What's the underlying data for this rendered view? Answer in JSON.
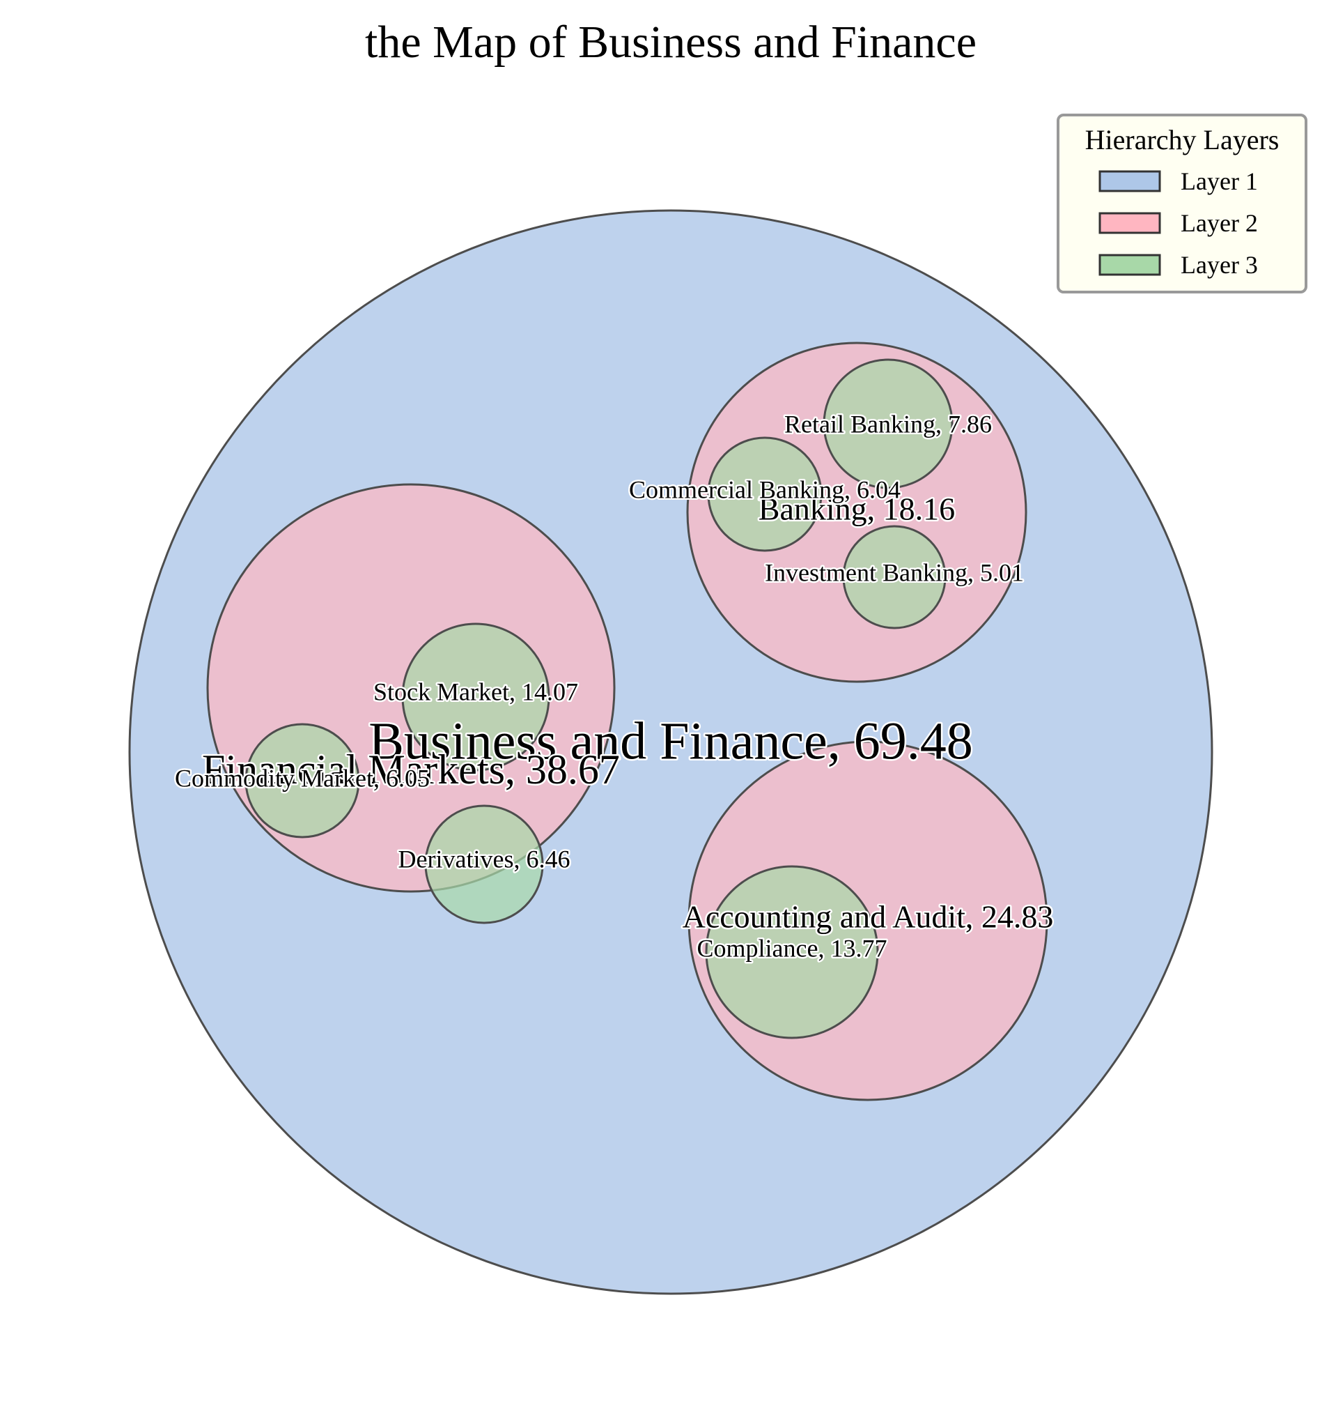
{
  "chart_data": {
    "type": "circle_packing",
    "title": "the Map of Business and Finance",
    "legend": {
      "title": "Hierarchy Layers",
      "placement": "top-right",
      "entries": [
        {
          "label": "Layer 1",
          "color": "#aec7e8"
        },
        {
          "label": "Layer 2",
          "color": "#ffb6c1"
        },
        {
          "label": "Layer 3",
          "color": "#a8d8a8"
        }
      ]
    },
    "nodes": [
      {
        "id": "root",
        "label": "Business and Finance, 69.48",
        "name": "Business and Finance",
        "value": 69.48,
        "layer": 1,
        "parent": null
      },
      {
        "id": "fm",
        "label": "Financial Markets, 38.67",
        "name": "Financial Markets",
        "value": 38.67,
        "layer": 2,
        "parent": "root"
      },
      {
        "id": "banking",
        "label": "Banking, 18.16",
        "name": "Banking",
        "value": 18.16,
        "layer": 2,
        "parent": "root"
      },
      {
        "id": "aa",
        "label": "Accounting and Audit, 24.83",
        "name": "Accounting and Audit",
        "value": 24.83,
        "layer": 2,
        "parent": "root"
      },
      {
        "id": "stock",
        "label": "Stock Market, 14.07",
        "name": "Stock Market",
        "value": 14.07,
        "layer": 3,
        "parent": "fm"
      },
      {
        "id": "commodity",
        "label": "Commodity Market, 6.05",
        "name": "Commodity Market",
        "value": 6.05,
        "layer": 3,
        "parent": "fm"
      },
      {
        "id": "deriv",
        "label": "Derivatives, 6.46",
        "name": "Derivatives",
        "value": 6.46,
        "layer": 3,
        "parent": "fm"
      },
      {
        "id": "retail",
        "label": "Retail Banking, 7.86",
        "name": "Retail Banking",
        "value": 7.86,
        "layer": 3,
        "parent": "banking"
      },
      {
        "id": "commercial",
        "label": "Commercial Banking, 6.04",
        "name": "Commercial Banking",
        "value": 6.04,
        "layer": 3,
        "parent": "banking"
      },
      {
        "id": "invest",
        "label": "Investment Banking, 5.01",
        "name": "Investment Banking",
        "value": 5.01,
        "layer": 3,
        "parent": "banking"
      },
      {
        "id": "compliance",
        "label": "Compliance, 13.77",
        "name": "Compliance",
        "value": 13.77,
        "layer": 3,
        "parent": "aa"
      }
    ]
  }
}
